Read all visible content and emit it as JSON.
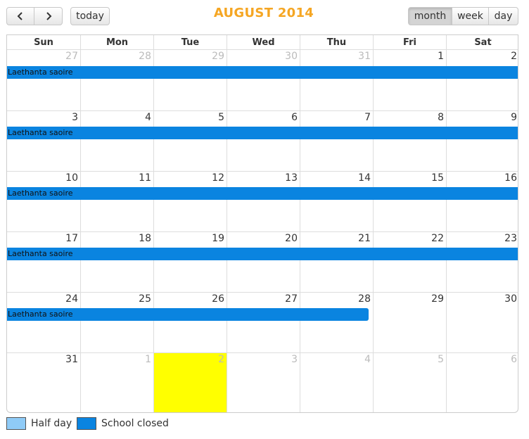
{
  "toolbar": {
    "prev_icon": "chevron-left-icon",
    "next_icon": "chevron-right-icon",
    "today_label": "today",
    "title": "AUGUST 2014",
    "views": [
      {
        "label": "month",
        "active": true
      },
      {
        "label": "week",
        "active": false
      },
      {
        "label": "day",
        "active": false
      }
    ]
  },
  "calendar": {
    "weekdays": [
      "Sun",
      "Mon",
      "Tue",
      "Wed",
      "Thu",
      "Fri",
      "Sat"
    ],
    "weeks": [
      [
        {
          "n": "27",
          "other": true
        },
        {
          "n": "28",
          "other": true
        },
        {
          "n": "29",
          "other": true
        },
        {
          "n": "30",
          "other": true
        },
        {
          "n": "31",
          "other": true
        },
        {
          "n": "1"
        },
        {
          "n": "2"
        }
      ],
      [
        {
          "n": "3"
        },
        {
          "n": "4"
        },
        {
          "n": "5"
        },
        {
          "n": "6"
        },
        {
          "n": "7"
        },
        {
          "n": "8"
        },
        {
          "n": "9"
        }
      ],
      [
        {
          "n": "10"
        },
        {
          "n": "11"
        },
        {
          "n": "12"
        },
        {
          "n": "13"
        },
        {
          "n": "14"
        },
        {
          "n": "15"
        },
        {
          "n": "16"
        }
      ],
      [
        {
          "n": "17"
        },
        {
          "n": "18"
        },
        {
          "n": "19"
        },
        {
          "n": "20"
        },
        {
          "n": "21"
        },
        {
          "n": "22"
        },
        {
          "n": "23"
        }
      ],
      [
        {
          "n": "24"
        },
        {
          "n": "25"
        },
        {
          "n": "26"
        },
        {
          "n": "27"
        },
        {
          "n": "28"
        },
        {
          "n": "29"
        },
        {
          "n": "30"
        }
      ],
      [
        {
          "n": "31"
        },
        {
          "n": "1",
          "other": true
        },
        {
          "n": "2",
          "other": true,
          "today": true
        },
        {
          "n": "3",
          "other": true
        },
        {
          "n": "4",
          "other": true
        },
        {
          "n": "5",
          "other": true
        },
        {
          "n": "6",
          "other": true
        }
      ]
    ],
    "events": [
      {
        "title": "Laethanta saoire",
        "week": 0,
        "start_day": 0,
        "span_days": 7,
        "ends": false
      },
      {
        "title": "Laethanta saoire",
        "week": 1,
        "start_day": 0,
        "span_days": 7,
        "ends": false
      },
      {
        "title": "Laethanta saoire",
        "week": 2,
        "start_day": 0,
        "span_days": 7,
        "ends": false
      },
      {
        "title": "Laethanta saoire",
        "week": 3,
        "start_day": 0,
        "span_days": 7,
        "ends": false
      },
      {
        "title": "Laethanta saoire",
        "week": 4,
        "start_day": 0,
        "span_days": 5,
        "ends": true
      }
    ],
    "event_color": "#0a84e0",
    "today_color": "#ffff00"
  },
  "legend": [
    {
      "label": "Half day",
      "color": "#8fcbf7"
    },
    {
      "label": "School closed",
      "color": "#0a84e0"
    }
  ]
}
